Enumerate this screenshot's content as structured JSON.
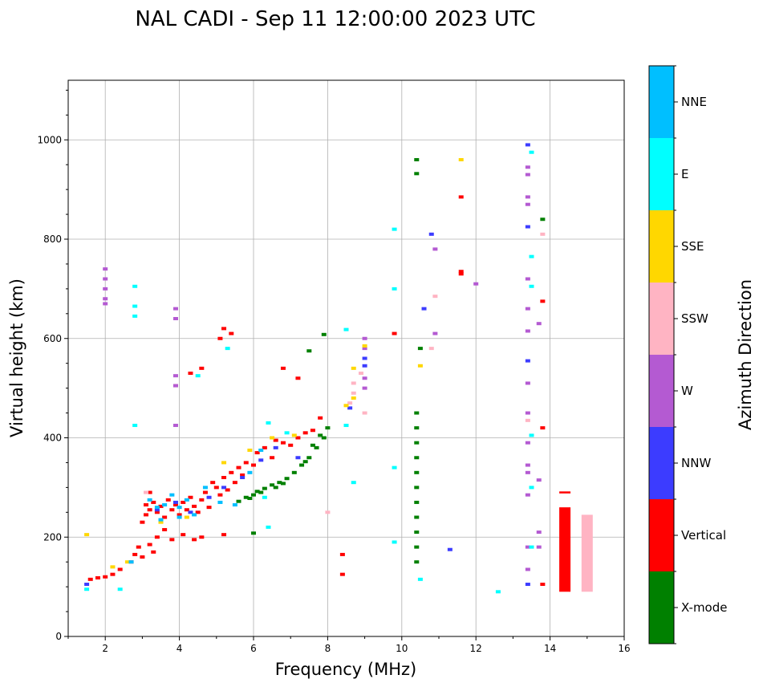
{
  "chart_data": {
    "type": "scatter",
    "title": "NAL CADI - Sep 11 12:00:00 2023 UTC",
    "xlabel": "Frequency (MHz)",
    "ylabel": "Virtual height (km)",
    "xlim": [
      1,
      16
    ],
    "ylim": [
      0,
      1120
    ],
    "grid": true,
    "xticks": [
      2,
      4,
      6,
      8,
      10,
      12,
      14,
      16
    ],
    "yticks": [
      0,
      200,
      400,
      600,
      800,
      1000
    ],
    "colorbar": {
      "label": "Azimuth Direction",
      "categories": [
        {
          "name": "X-mode",
          "color": "#008000"
        },
        {
          "name": "Vertical",
          "color": "#ff0000"
        },
        {
          "name": "NNW",
          "color": "#3c3cff"
        },
        {
          "name": "W",
          "color": "#b45ad2"
        },
        {
          "name": "SSW",
          "color": "#ffb4c3"
        },
        {
          "name": "SSE",
          "color": "#ffd700"
        },
        {
          "name": "E",
          "color": "#00ffff"
        },
        {
          "name": "NNE",
          "color": "#00bfff"
        }
      ]
    },
    "series": [
      {
        "name": "X-mode",
        "points": [
          [
            5.6,
            272
          ],
          [
            5.8,
            280
          ],
          [
            6.0,
            285
          ],
          [
            6.1,
            292
          ],
          [
            6.3,
            298
          ],
          [
            6.5,
            305
          ],
          [
            6.7,
            310
          ],
          [
            6.9,
            318
          ],
          [
            7.1,
            330
          ],
          [
            7.3,
            345
          ],
          [
            7.5,
            360
          ],
          [
            7.7,
            380
          ],
          [
            7.9,
            400
          ],
          [
            8.0,
            420
          ],
          [
            6.6,
            300
          ],
          [
            6.8,
            308
          ],
          [
            7.4,
            352
          ],
          [
            6.2,
            290
          ],
          [
            5.9,
            278
          ],
          [
            7.6,
            385
          ],
          [
            7.8,
            405
          ],
          [
            7.5,
            575
          ],
          [
            7.9,
            608
          ],
          [
            10.4,
            960
          ],
          [
            10.4,
            932
          ],
          [
            10.5,
            580
          ],
          [
            10.4,
            450
          ],
          [
            10.4,
            420
          ],
          [
            10.4,
            390
          ],
          [
            10.4,
            360
          ],
          [
            10.4,
            330
          ],
          [
            10.4,
            300
          ],
          [
            10.4,
            270
          ],
          [
            10.4,
            240
          ],
          [
            10.4,
            210
          ],
          [
            10.4,
            180
          ],
          [
            10.4,
            150
          ],
          [
            13.8,
            840
          ],
          [
            6.0,
            208
          ]
        ]
      },
      {
        "name": "Vertical",
        "points": [
          [
            1.6,
            115
          ],
          [
            1.8,
            118
          ],
          [
            2.0,
            120
          ],
          [
            2.2,
            125
          ],
          [
            2.4,
            135
          ],
          [
            2.7,
            150
          ],
          [
            2.8,
            165
          ],
          [
            2.9,
            180
          ],
          [
            3.0,
            160
          ],
          [
            3.0,
            230
          ],
          [
            3.1,
            245
          ],
          [
            3.1,
            265
          ],
          [
            3.2,
            255
          ],
          [
            3.2,
            290
          ],
          [
            3.3,
            270
          ],
          [
            3.4,
            250
          ],
          [
            3.5,
            262
          ],
          [
            3.6,
            240
          ],
          [
            3.7,
            275
          ],
          [
            3.8,
            255
          ],
          [
            3.9,
            265
          ],
          [
            4.0,
            245
          ],
          [
            4.1,
            270
          ],
          [
            4.2,
            255
          ],
          [
            4.3,
            280
          ],
          [
            4.4,
            262
          ],
          [
            4.5,
            250
          ],
          [
            4.6,
            275
          ],
          [
            4.7,
            290
          ],
          [
            4.8,
            260
          ],
          [
            4.9,
            310
          ],
          [
            5.0,
            300
          ],
          [
            5.1,
            285
          ],
          [
            5.2,
            320
          ],
          [
            5.3,
            295
          ],
          [
            5.4,
            330
          ],
          [
            5.5,
            310
          ],
          [
            5.6,
            340
          ],
          [
            5.7,
            325
          ],
          [
            5.8,
            350
          ],
          [
            6.0,
            345
          ],
          [
            6.1,
            370
          ],
          [
            6.3,
            380
          ],
          [
            6.5,
            360
          ],
          [
            6.6,
            395
          ],
          [
            6.8,
            390
          ],
          [
            7.0,
            385
          ],
          [
            7.2,
            400
          ],
          [
            7.4,
            410
          ],
          [
            7.6,
            415
          ],
          [
            7.8,
            440
          ],
          [
            3.4,
            200
          ],
          [
            3.6,
            215
          ],
          [
            3.8,
            195
          ],
          [
            4.1,
            205
          ],
          [
            4.4,
            195
          ],
          [
            4.6,
            200
          ],
          [
            5.2,
            205
          ],
          [
            4.3,
            530
          ],
          [
            4.6,
            540
          ],
          [
            3.9,
            505
          ],
          [
            5.1,
            600
          ],
          [
            5.2,
            620
          ],
          [
            5.4,
            610
          ],
          [
            6.8,
            540
          ],
          [
            7.2,
            520
          ],
          [
            8.4,
            165
          ],
          [
            8.4,
            125
          ],
          [
            11.6,
            885
          ],
          [
            11.6,
            735
          ],
          [
            11.6,
            730
          ],
          [
            13.8,
            675
          ],
          [
            13.8,
            420
          ],
          [
            13.8,
            105
          ],
          [
            9.8,
            610
          ],
          [
            3.2,
            185
          ],
          [
            3.3,
            170
          ]
        ]
      },
      {
        "name": "NNW",
        "points": [
          [
            3.4,
            255
          ],
          [
            3.9,
            270
          ],
          [
            4.3,
            250
          ],
          [
            4.8,
            280
          ],
          [
            5.2,
            300
          ],
          [
            5.7,
            320
          ],
          [
            6.2,
            355
          ],
          [
            6.6,
            380
          ],
          [
            7.2,
            360
          ],
          [
            10.8,
            810
          ],
          [
            10.6,
            660
          ],
          [
            11.3,
            175
          ],
          [
            13.4,
            990
          ],
          [
            13.4,
            825
          ],
          [
            13.4,
            555
          ],
          [
            13.4,
            105
          ],
          [
            9.0,
            560
          ],
          [
            9.0,
            545
          ],
          [
            8.6,
            460
          ],
          [
            1.5,
            105
          ]
        ]
      },
      {
        "name": "W",
        "points": [
          [
            2.0,
            740
          ],
          [
            2.0,
            720
          ],
          [
            2.0,
            700
          ],
          [
            2.0,
            680
          ],
          [
            2.0,
            670
          ],
          [
            3.9,
            660
          ],
          [
            3.9,
            640
          ],
          [
            3.9,
            525
          ],
          [
            3.9,
            505
          ],
          [
            3.9,
            425
          ],
          [
            9.0,
            520
          ],
          [
            9.0,
            500
          ],
          [
            9.0,
            580
          ],
          [
            9.0,
            600
          ],
          [
            10.9,
            780
          ],
          [
            10.9,
            610
          ],
          [
            12.0,
            710
          ],
          [
            13.4,
            945
          ],
          [
            13.4,
            930
          ],
          [
            13.4,
            885
          ],
          [
            13.4,
            870
          ],
          [
            13.4,
            720
          ],
          [
            13.4,
            660
          ],
          [
            13.4,
            615
          ],
          [
            13.4,
            510
          ],
          [
            13.4,
            450
          ],
          [
            13.4,
            390
          ],
          [
            13.4,
            345
          ],
          [
            13.4,
            285
          ],
          [
            13.4,
            180
          ],
          [
            13.4,
            135
          ],
          [
            13.7,
            630
          ],
          [
            13.7,
            315
          ],
          [
            13.7,
            210
          ],
          [
            13.7,
            180
          ],
          [
            13.4,
            330
          ]
        ]
      },
      {
        "name": "SSW",
        "points": [
          [
            8.7,
            510
          ],
          [
            8.7,
            490
          ],
          [
            8.9,
            530
          ],
          [
            8.6,
            470
          ],
          [
            9.0,
            450
          ],
          [
            10.8,
            580
          ],
          [
            10.9,
            685
          ],
          [
            13.8,
            810
          ],
          [
            13.4,
            435
          ],
          [
            15.0,
            240
          ],
          [
            15.0,
            220
          ],
          [
            15.0,
            200
          ],
          [
            15.0,
            180
          ],
          [
            15.0,
            160
          ],
          [
            15.0,
            140
          ],
          [
            15.0,
            120
          ],
          [
            15.0,
            100
          ],
          [
            8.0,
            250
          ],
          [
            3.1,
            290
          ]
        ]
      },
      {
        "name": "SSE",
        "points": [
          [
            2.2,
            140
          ],
          [
            2.6,
            150
          ],
          [
            3.5,
            230
          ],
          [
            4.2,
            240
          ],
          [
            5.2,
            350
          ],
          [
            5.9,
            375
          ],
          [
            6.5,
            400
          ],
          [
            7.1,
            405
          ],
          [
            8.7,
            540
          ],
          [
            8.7,
            480
          ],
          [
            9.0,
            585
          ],
          [
            8.5,
            465
          ],
          [
            10.5,
            545
          ],
          [
            11.6,
            960
          ],
          [
            1.5,
            205
          ]
        ]
      },
      {
        "name": "E",
        "points": [
          [
            1.5,
            95
          ],
          [
            2.4,
            95
          ],
          [
            2.8,
            705
          ],
          [
            2.8,
            665
          ],
          [
            2.8,
            645
          ],
          [
            2.8,
            425
          ],
          [
            4.5,
            525
          ],
          [
            6.4,
            430
          ],
          [
            6.4,
            220
          ],
          [
            6.9,
            410
          ],
          [
            5.3,
            580
          ],
          [
            8.5,
            618
          ],
          [
            8.5,
            425
          ],
          [
            8.7,
            310
          ],
          [
            9.8,
            820
          ],
          [
            9.8,
            700
          ],
          [
            9.8,
            340
          ],
          [
            9.8,
            190
          ],
          [
            10.5,
            115
          ],
          [
            12.6,
            90
          ],
          [
            13.5,
            975
          ],
          [
            13.5,
            765
          ],
          [
            13.5,
            705
          ],
          [
            13.5,
            405
          ],
          [
            13.5,
            300
          ],
          [
            13.5,
            180
          ],
          [
            15.0,
            165
          ],
          [
            15.0,
            105
          ],
          [
            15.0,
            95
          ],
          [
            15.0,
            185
          ],
          [
            6.3,
            280
          ]
        ]
      },
      {
        "name": "NNE",
        "points": [
          [
            3.2,
            275
          ],
          [
            3.4,
            260
          ],
          [
            3.6,
            265
          ],
          [
            3.8,
            285
          ],
          [
            4.0,
            260
          ],
          [
            4.4,
            245
          ],
          [
            4.7,
            300
          ],
          [
            5.1,
            270
          ],
          [
            5.5,
            265
          ],
          [
            5.9,
            330
          ],
          [
            3.5,
            235
          ],
          [
            4.2,
            275
          ],
          [
            6.2,
            375
          ],
          [
            2.7,
            150
          ],
          [
            4.0,
            240
          ]
        ]
      }
    ],
    "bars": [
      {
        "name": "Vertical",
        "x": 14.4,
        "y0": 90,
        "y1": 260
      },
      {
        "name": "Vertical",
        "x": 14.4,
        "y0": 288,
        "y1": 292
      },
      {
        "name": "SSW",
        "x": 15.0,
        "y0": 90,
        "y1": 245
      }
    ]
  }
}
